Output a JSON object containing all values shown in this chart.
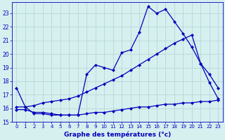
{
  "xlabel": "Graphe des températures (°c)",
  "bg_color": "#d6efef",
  "grid_color": "#b8d8d8",
  "line_color": "#0000bb",
  "xlim": [
    -0.5,
    23.5
  ],
  "ylim": [
    15,
    23.8
  ],
  "yticks": [
    15,
    16,
    17,
    18,
    19,
    20,
    21,
    22,
    23
  ],
  "xticks": [
    0,
    1,
    2,
    3,
    4,
    5,
    6,
    7,
    8,
    9,
    10,
    11,
    12,
    13,
    14,
    15,
    16,
    17,
    18,
    19,
    20,
    21,
    22,
    23
  ],
  "line1_x": [
    0,
    1,
    2,
    3,
    4,
    5,
    6,
    7,
    8,
    9,
    10,
    11,
    12,
    13,
    14,
    15,
    16,
    17,
    18,
    19,
    20,
    21,
    22,
    23
  ],
  "line1_y": [
    17.5,
    16.1,
    15.6,
    15.6,
    15.5,
    15.5,
    15.5,
    15.5,
    18.5,
    19.2,
    19.0,
    18.8,
    20.1,
    20.3,
    21.6,
    23.5,
    23.0,
    23.3,
    22.4,
    21.5,
    20.5,
    19.3,
    17.9,
    16.7
  ],
  "line2_x": [
    0,
    1,
    2,
    3,
    4,
    5,
    6,
    7,
    8,
    9,
    10,
    11,
    12,
    13,
    14,
    15,
    16,
    17,
    18,
    19,
    20,
    21,
    22,
    23
  ],
  "line2_y": [
    16.1,
    16.1,
    16.2,
    16.4,
    16.5,
    16.6,
    16.7,
    16.9,
    17.2,
    17.5,
    17.8,
    18.1,
    18.4,
    18.8,
    19.2,
    19.6,
    20.0,
    20.4,
    20.8,
    21.1,
    21.4,
    19.3,
    18.5,
    17.5
  ],
  "line3_x": [
    0,
    1,
    2,
    3,
    4,
    5,
    6,
    7,
    8,
    9,
    10,
    11,
    12,
    13,
    14,
    15,
    16,
    17,
    18,
    19,
    20,
    21,
    22,
    23
  ],
  "line3_y": [
    15.9,
    15.9,
    15.7,
    15.7,
    15.6,
    15.5,
    15.5,
    15.5,
    15.6,
    15.7,
    15.7,
    15.8,
    15.9,
    16.0,
    16.1,
    16.1,
    16.2,
    16.3,
    16.3,
    16.4,
    16.4,
    16.5,
    16.5,
    16.6
  ]
}
